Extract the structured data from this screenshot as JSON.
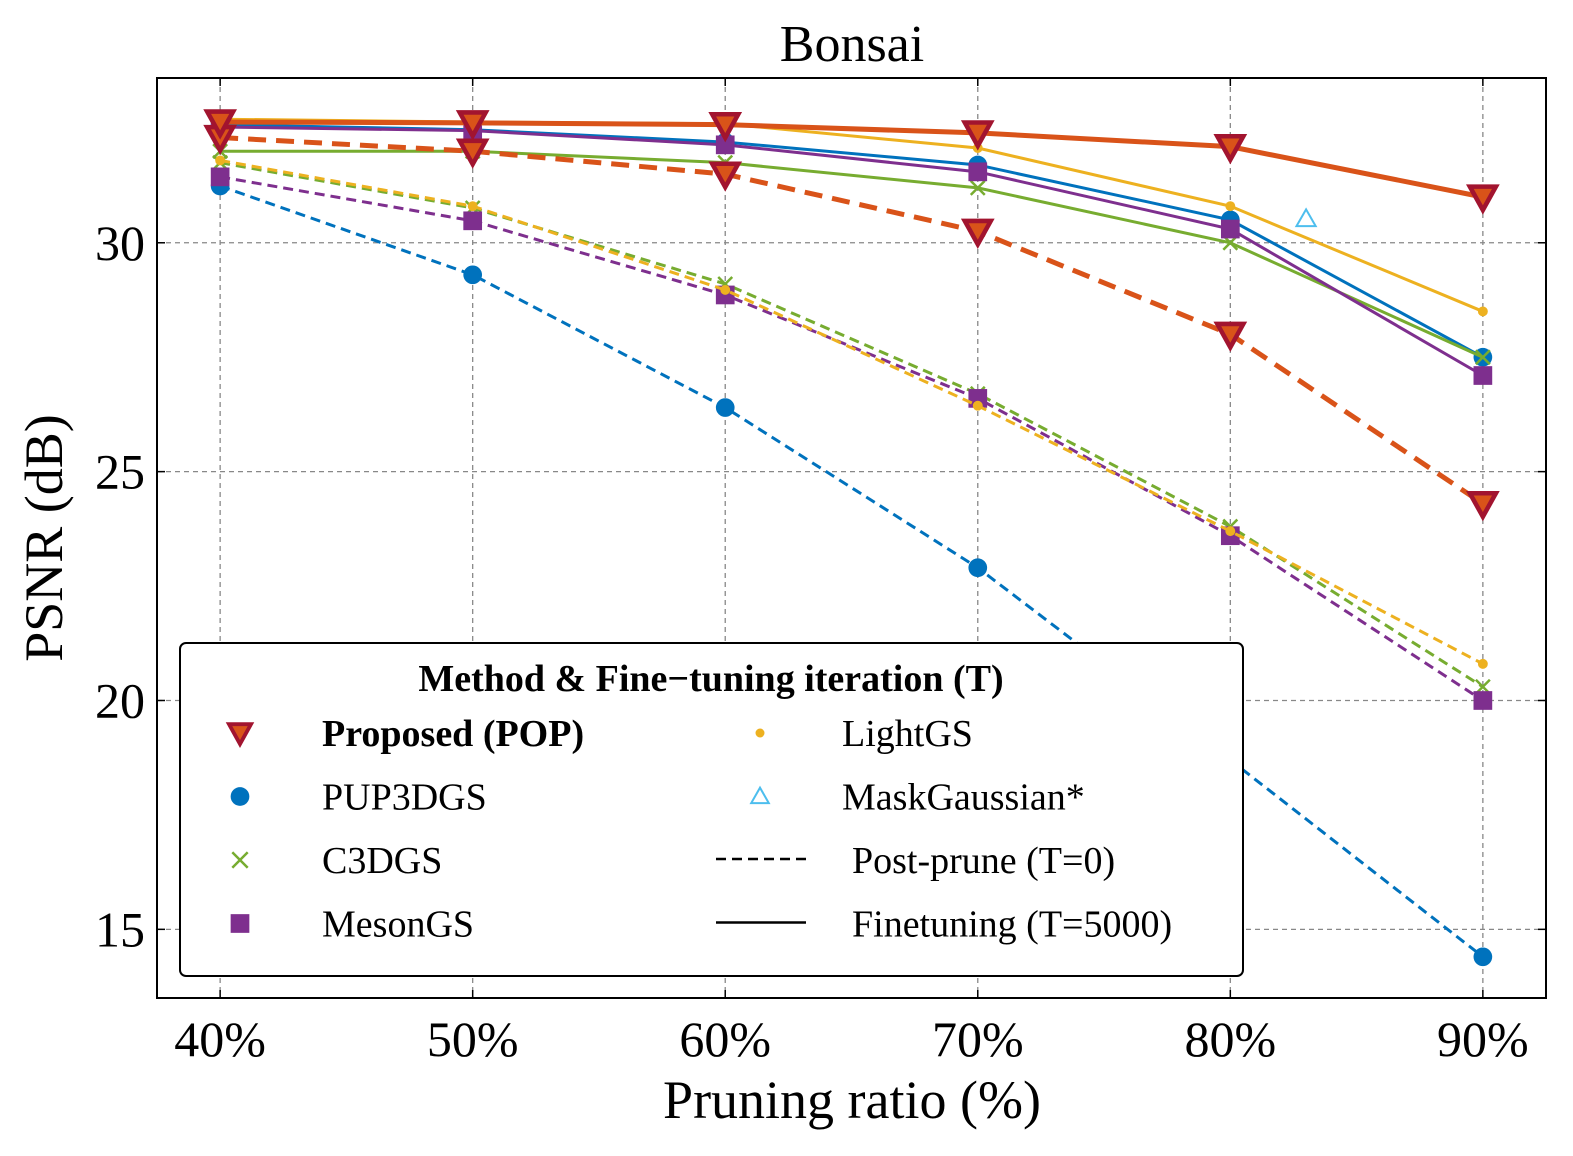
{
  "chart_data": {
    "type": "line",
    "title": "Bonsai",
    "xlabel": "Pruning ratio (%)",
    "ylabel": "PSNR (dB)",
    "x": [
      40,
      50,
      60,
      70,
      80,
      90
    ],
    "xtick_labels": [
      "40%",
      "50%",
      "60%",
      "70%",
      "80%",
      "90%"
    ],
    "yticks": [
      15,
      20,
      25,
      30
    ],
    "ytick_labels": [
      "15",
      "20",
      "25",
      "30"
    ],
    "xlim": [
      37.5,
      92.5
    ],
    "ylim": [
      13.5,
      33.6
    ],
    "grid": true,
    "series": [
      {
        "name": "Proposed (POP)",
        "variant": "Post-prune (T=0)",
        "style": "dashed",
        "marker": "triangle-down",
        "color": "#d95319",
        "edge": "#a2142f",
        "values": [
          32.3,
          32.0,
          31.5,
          30.25,
          28.0,
          24.3
        ]
      },
      {
        "name": "Proposed (POP)",
        "variant": "Finetuning (T=5000)",
        "style": "solid",
        "marker": "triangle-down",
        "color": "#d95319",
        "edge": "#a2142f",
        "values": [
          32.64,
          32.62,
          32.58,
          32.4,
          32.1,
          31.0
        ]
      },
      {
        "name": "PUP3DGS",
        "variant": "Post-prune (T=0)",
        "style": "dashed",
        "marker": "circle",
        "color": "#0072bd",
        "values": [
          31.24,
          29.3,
          26.4,
          22.9,
          18.7,
          14.4
        ]
      },
      {
        "name": "PUP3DGS",
        "variant": "Finetuning (T=5000)",
        "style": "solid",
        "marker": "circle",
        "color": "#0072bd",
        "values": [
          32.58,
          32.47,
          32.2,
          31.7,
          30.5,
          27.5
        ]
      },
      {
        "name": "C3DGS",
        "variant": "Post-prune (T=0)",
        "style": "dashed",
        "marker": "x",
        "color": "#77ac30",
        "values": [
          31.75,
          30.76,
          29.1,
          26.7,
          23.8,
          20.3
        ]
      },
      {
        "name": "C3DGS",
        "variant": "Finetuning (T=5000)",
        "style": "solid",
        "marker": "x",
        "color": "#77ac30",
        "values": [
          32.0,
          32.0,
          31.75,
          31.2,
          30.0,
          27.5
        ]
      },
      {
        "name": "MesonGS",
        "variant": "Post-prune (T=0)",
        "style": "dashed",
        "marker": "square",
        "color": "#7e2f8e",
        "values": [
          31.44,
          30.48,
          28.86,
          26.6,
          23.6,
          20.0
        ]
      },
      {
        "name": "MesonGS",
        "variant": "Finetuning (T=5000)",
        "style": "solid",
        "marker": "square",
        "color": "#7e2f8e",
        "values": [
          32.53,
          32.45,
          32.14,
          31.55,
          30.3,
          27.1
        ]
      },
      {
        "name": "LightGS",
        "variant": "Post-prune (T=0)",
        "style": "dashed",
        "marker": "dot",
        "color": "#edb120",
        "values": [
          31.8,
          30.8,
          28.97,
          26.44,
          23.7,
          20.8
        ]
      },
      {
        "name": "LightGS",
        "variant": "Finetuning (T=5000)",
        "style": "solid",
        "marker": "dot",
        "color": "#edb120",
        "values": [
          32.7,
          32.64,
          32.6,
          32.07,
          30.8,
          28.5
        ]
      },
      {
        "name": "MaskGaussian*",
        "variant": "Finetuning",
        "style": "none",
        "marker": "triangle-up-open",
        "color": "#4dbeee",
        "x": [
          83
        ],
        "values": [
          30.52
        ]
      }
    ],
    "legend": {
      "title": "Method   &   Fine−tuning iteration (T)",
      "placement": "lower-left",
      "entries": [
        {
          "label": "Proposed (POP)",
          "marker": "triangle-down",
          "color": "#d95319",
          "edge": "#a2142f",
          "bold": true
        },
        {
          "label": "PUP3DGS",
          "marker": "circle",
          "color": "#0072bd"
        },
        {
          "label": "C3DGS",
          "marker": "x",
          "color": "#77ac30"
        },
        {
          "label": "MesonGS",
          "marker": "square",
          "color": "#7e2f8e"
        },
        {
          "label": "LightGS",
          "marker": "dot",
          "color": "#edb120"
        },
        {
          "label": "MaskGaussian*",
          "marker": "triangle-up-open",
          "color": "#4dbeee"
        },
        {
          "label": "Post-prune (T=0)",
          "marker": "dashed-line",
          "color": "#000000"
        },
        {
          "label": "Finetuning (T=5000)",
          "marker": "solid-line",
          "color": "#000000"
        }
      ]
    }
  }
}
